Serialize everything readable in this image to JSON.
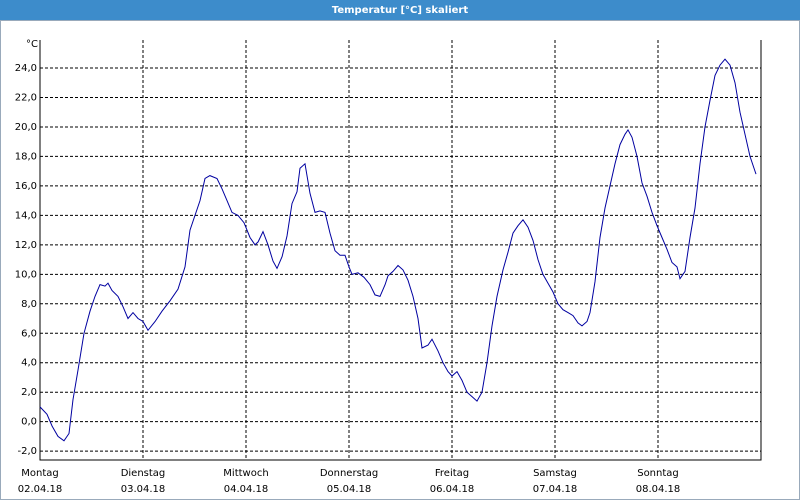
{
  "chart_data": {
    "type": "line",
    "title": "Temperatur [°C] skaliert",
    "y_unit": "°C",
    "x": [
      0,
      0.068,
      0.117,
      0.175,
      0.233,
      0.282,
      0.32,
      0.369,
      0.427,
      0.485,
      0.534,
      0.583,
      0.631,
      0.66,
      0.699,
      0.757,
      0.806,
      0.854,
      0.903,
      0.951,
      1.0,
      1.049,
      1.117,
      1.184,
      1.262,
      1.34,
      1.408,
      1.456,
      1.505,
      1.553,
      1.602,
      1.65,
      1.718,
      1.767,
      1.816,
      1.864,
      1.922,
      1.981,
      2.039,
      2.087,
      2.117,
      2.165,
      2.214,
      2.262,
      2.301,
      2.35,
      2.398,
      2.447,
      2.495,
      2.524,
      2.573,
      2.621,
      2.67,
      2.718,
      2.767,
      2.816,
      2.864,
      2.913,
      2.961,
      3.0,
      3.029,
      3.087,
      3.146,
      3.204,
      3.252,
      3.301,
      3.35,
      3.379,
      3.427,
      3.476,
      3.524,
      3.573,
      3.621,
      3.67,
      3.709,
      3.767,
      3.806,
      3.864,
      3.913,
      3.961,
      4.0,
      4.049,
      4.097,
      4.146,
      4.194,
      4.243,
      4.291,
      4.34,
      4.388,
      4.437,
      4.495,
      4.544,
      4.592,
      4.641,
      4.689,
      4.738,
      4.786,
      4.835,
      4.883,
      4.932,
      4.981,
      5.029,
      5.078,
      5.126,
      5.175,
      5.223,
      5.262,
      5.311,
      5.34,
      5.388,
      5.437,
      5.485,
      5.534,
      5.583,
      5.631,
      5.68,
      5.709,
      5.748,
      5.796,
      5.845,
      5.893,
      5.942,
      5.99,
      6.039,
      6.087,
      6.136,
      6.184,
      6.214,
      6.262,
      6.311,
      6.359,
      6.408,
      6.456,
      6.505,
      6.553,
      6.602,
      6.65,
      6.699,
      6.748,
      6.796,
      6.845,
      6.893,
      6.951
    ],
    "series": [
      {
        "name": "Temperatur",
        "color": "#0000a0",
        "values": [
          1.0,
          0.5,
          -0.3,
          -1.0,
          -1.3,
          -0.8,
          1.5,
          3.5,
          6.0,
          7.5,
          8.5,
          9.3,
          9.2,
          9.4,
          8.9,
          8.5,
          7.8,
          7.0,
          7.4,
          7.0,
          6.8,
          6.2,
          6.8,
          7.5,
          8.2,
          9.0,
          10.5,
          13.0,
          14.0,
          15.0,
          16.5,
          16.7,
          16.5,
          15.8,
          15.0,
          14.2,
          14.0,
          13.5,
          12.5,
          12.0,
          12.2,
          12.9,
          12.0,
          10.9,
          10.4,
          11.2,
          12.6,
          14.8,
          15.6,
          17.2,
          17.5,
          15.5,
          14.2,
          14.3,
          14.2,
          12.8,
          11.6,
          11.3,
          11.3,
          10.5,
          10.0,
          10.1,
          9.8,
          9.3,
          8.6,
          8.5,
          9.3,
          9.9,
          10.2,
          10.6,
          10.3,
          9.6,
          8.5,
          7.0,
          5.0,
          5.2,
          5.6,
          4.8,
          4.0,
          3.4,
          3.1,
          3.4,
          2.8,
          2.0,
          1.7,
          1.4,
          2.0,
          4.0,
          6.5,
          8.5,
          10.3,
          11.5,
          12.8,
          13.3,
          13.7,
          13.2,
          12.3,
          11.0,
          10.0,
          9.4,
          8.8,
          8.0,
          7.6,
          7.4,
          7.2,
          6.7,
          6.5,
          6.8,
          7.4,
          9.5,
          12.5,
          14.5,
          16.0,
          17.5,
          18.8,
          19.5,
          19.8,
          19.3,
          18.0,
          16.2,
          15.3,
          14.2,
          13.3,
          12.5,
          11.7,
          10.8,
          10.5,
          9.7,
          10.2,
          12.5,
          14.5,
          17.5,
          20.0,
          21.8,
          23.5,
          24.2,
          24.6,
          24.2,
          23.0,
          21.0,
          19.5,
          18.0,
          16.8
        ]
      }
    ],
    "xlim": [
      0,
      7
    ],
    "xticks": [
      {
        "value": 0,
        "label": "Montag"
      },
      {
        "value": 1,
        "label": "Dienstag"
      },
      {
        "value": 2,
        "label": "Mittwoch"
      },
      {
        "value": 3,
        "label": "Donnerstag"
      },
      {
        "value": 4,
        "label": "Freitag"
      },
      {
        "value": 5,
        "label": "Samstag"
      },
      {
        "value": 6,
        "label": "Sonntag"
      }
    ],
    "xtick_dates": [
      "02.04.18",
      "03.04.18",
      "04.04.18",
      "05.04.18",
      "06.04.18",
      "07.04.18",
      "08.04.18"
    ],
    "ylim": [
      -2.6,
      25.9
    ],
    "yticks": [
      {
        "value": -2,
        "label": "-2,0"
      },
      {
        "value": 0,
        "label": "0,0"
      },
      {
        "value": 2,
        "label": "2,0"
      },
      {
        "value": 4,
        "label": "4,0"
      },
      {
        "value": 6,
        "label": "6,0"
      },
      {
        "value": 8,
        "label": "8,0"
      },
      {
        "value": 10,
        "label": "10,0"
      },
      {
        "value": 12,
        "label": "12,0"
      },
      {
        "value": 14,
        "label": "14,0"
      },
      {
        "value": 16,
        "label": "16,0"
      },
      {
        "value": 18,
        "label": "18,0"
      },
      {
        "value": 20,
        "label": "20,0"
      },
      {
        "value": 22,
        "label": "22,0"
      },
      {
        "value": 24,
        "label": "24,0"
      }
    ],
    "grid": true
  }
}
